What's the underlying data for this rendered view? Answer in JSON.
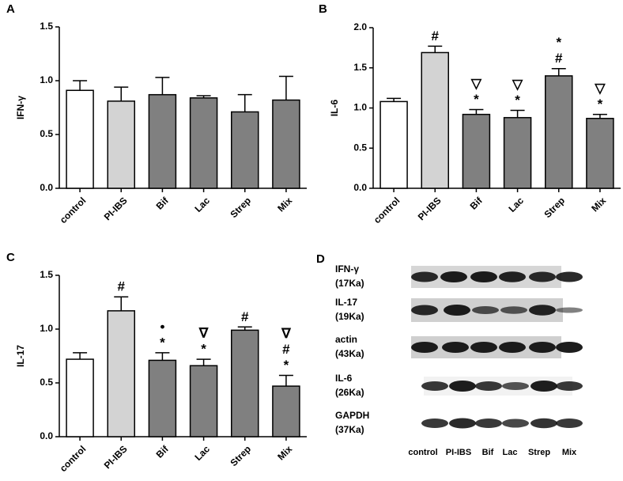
{
  "chart_data": [
    {
      "type": "bar",
      "panel_label": "A",
      "ylabel": "IFN-γ",
      "categories": [
        "control",
        "PI-IBS",
        "Bif",
        "Lac",
        "Strep",
        "Mix"
      ],
      "values": [
        0.91,
        0.81,
        0.87,
        0.84,
        0.71,
        0.82
      ],
      "errors": [
        0.09,
        0.13,
        0.16,
        0.02,
        0.16,
        0.22
      ],
      "colors": [
        "#ffffff",
        "#d3d3d3",
        "#808080",
        "#808080",
        "#808080",
        "#808080"
      ],
      "ylim": [
        0,
        1.5
      ],
      "yticks": [
        {
          "value": 0,
          "label": "0.0"
        },
        0.5,
        {
          "value": 1,
          "label": "1.0"
        },
        1.5
      ]
    },
    {
      "type": "bar",
      "panel_label": "B",
      "ylabel": "IL-6",
      "categories": [
        "control",
        "PI-IBS",
        "Bif",
        "Lac",
        "Strep",
        "Mix"
      ],
      "values": [
        1.08,
        1.69,
        0.92,
        0.88,
        1.4,
        0.87
      ],
      "errors": [
        0.04,
        0.08,
        0.06,
        0.09,
        0.09,
        0.05
      ],
      "colors": [
        "#ffffff",
        "#d3d3d3",
        "#808080",
        "#808080",
        "#808080",
        "#808080"
      ],
      "annotations": [
        [],
        [
          "#"
        ],
        [
          "▽",
          "*"
        ],
        [
          "▽",
          "*"
        ],
        [
          "*",
          "#"
        ],
        [
          "▽",
          "*"
        ]
      ],
      "ylim": [
        0,
        2
      ],
      "yticks": [
        {
          "value": 0,
          "label": "0.0"
        },
        0.5,
        {
          "value": 1,
          "label": "1.0"
        },
        1.5,
        {
          "value": 2,
          "label": "2.0"
        }
      ]
    },
    {
      "type": "bar",
      "panel_label": "C",
      "ylabel": "IL-17",
      "categories": [
        "control",
        "PI-IBS",
        "Bif",
        "Lac",
        "Strep",
        "Mix"
      ],
      "values": [
        0.72,
        1.17,
        0.71,
        0.66,
        0.99,
        0.47
      ],
      "errors": [
        0.06,
        0.13,
        0.07,
        0.06,
        0.03,
        0.1
      ],
      "colors": [
        "#ffffff",
        "#d3d3d3",
        "#808080",
        "#808080",
        "#808080",
        "#808080"
      ],
      "annotations": [
        [],
        [
          "#"
        ],
        [
          "•",
          "*"
        ],
        [
          "∇",
          "*"
        ],
        [
          "#"
        ],
        [
          "∇",
          "#",
          "*"
        ]
      ],
      "ylim": [
        0,
        1.5
      ],
      "yticks": [
        {
          "value": 0,
          "label": "0.0"
        },
        0.5,
        {
          "value": 1,
          "label": "1.0"
        },
        1.5
      ]
    }
  ],
  "blot": {
    "panel_label": "D",
    "rows": [
      {
        "name": "IFN-γ",
        "size": "(17Ka)"
      },
      {
        "name": "IL-17",
        "size": "(19Ka)"
      },
      {
        "name": "actin",
        "size": "(43Ka)"
      },
      {
        "name": "IL-6",
        "size": "(26Ka)"
      },
      {
        "name": "GAPDH",
        "size": "(37Ka)"
      }
    ],
    "lanes": [
      "control",
      "PI-IBS",
      "Bif",
      "Lac",
      "Strep",
      "Mix"
    ]
  }
}
